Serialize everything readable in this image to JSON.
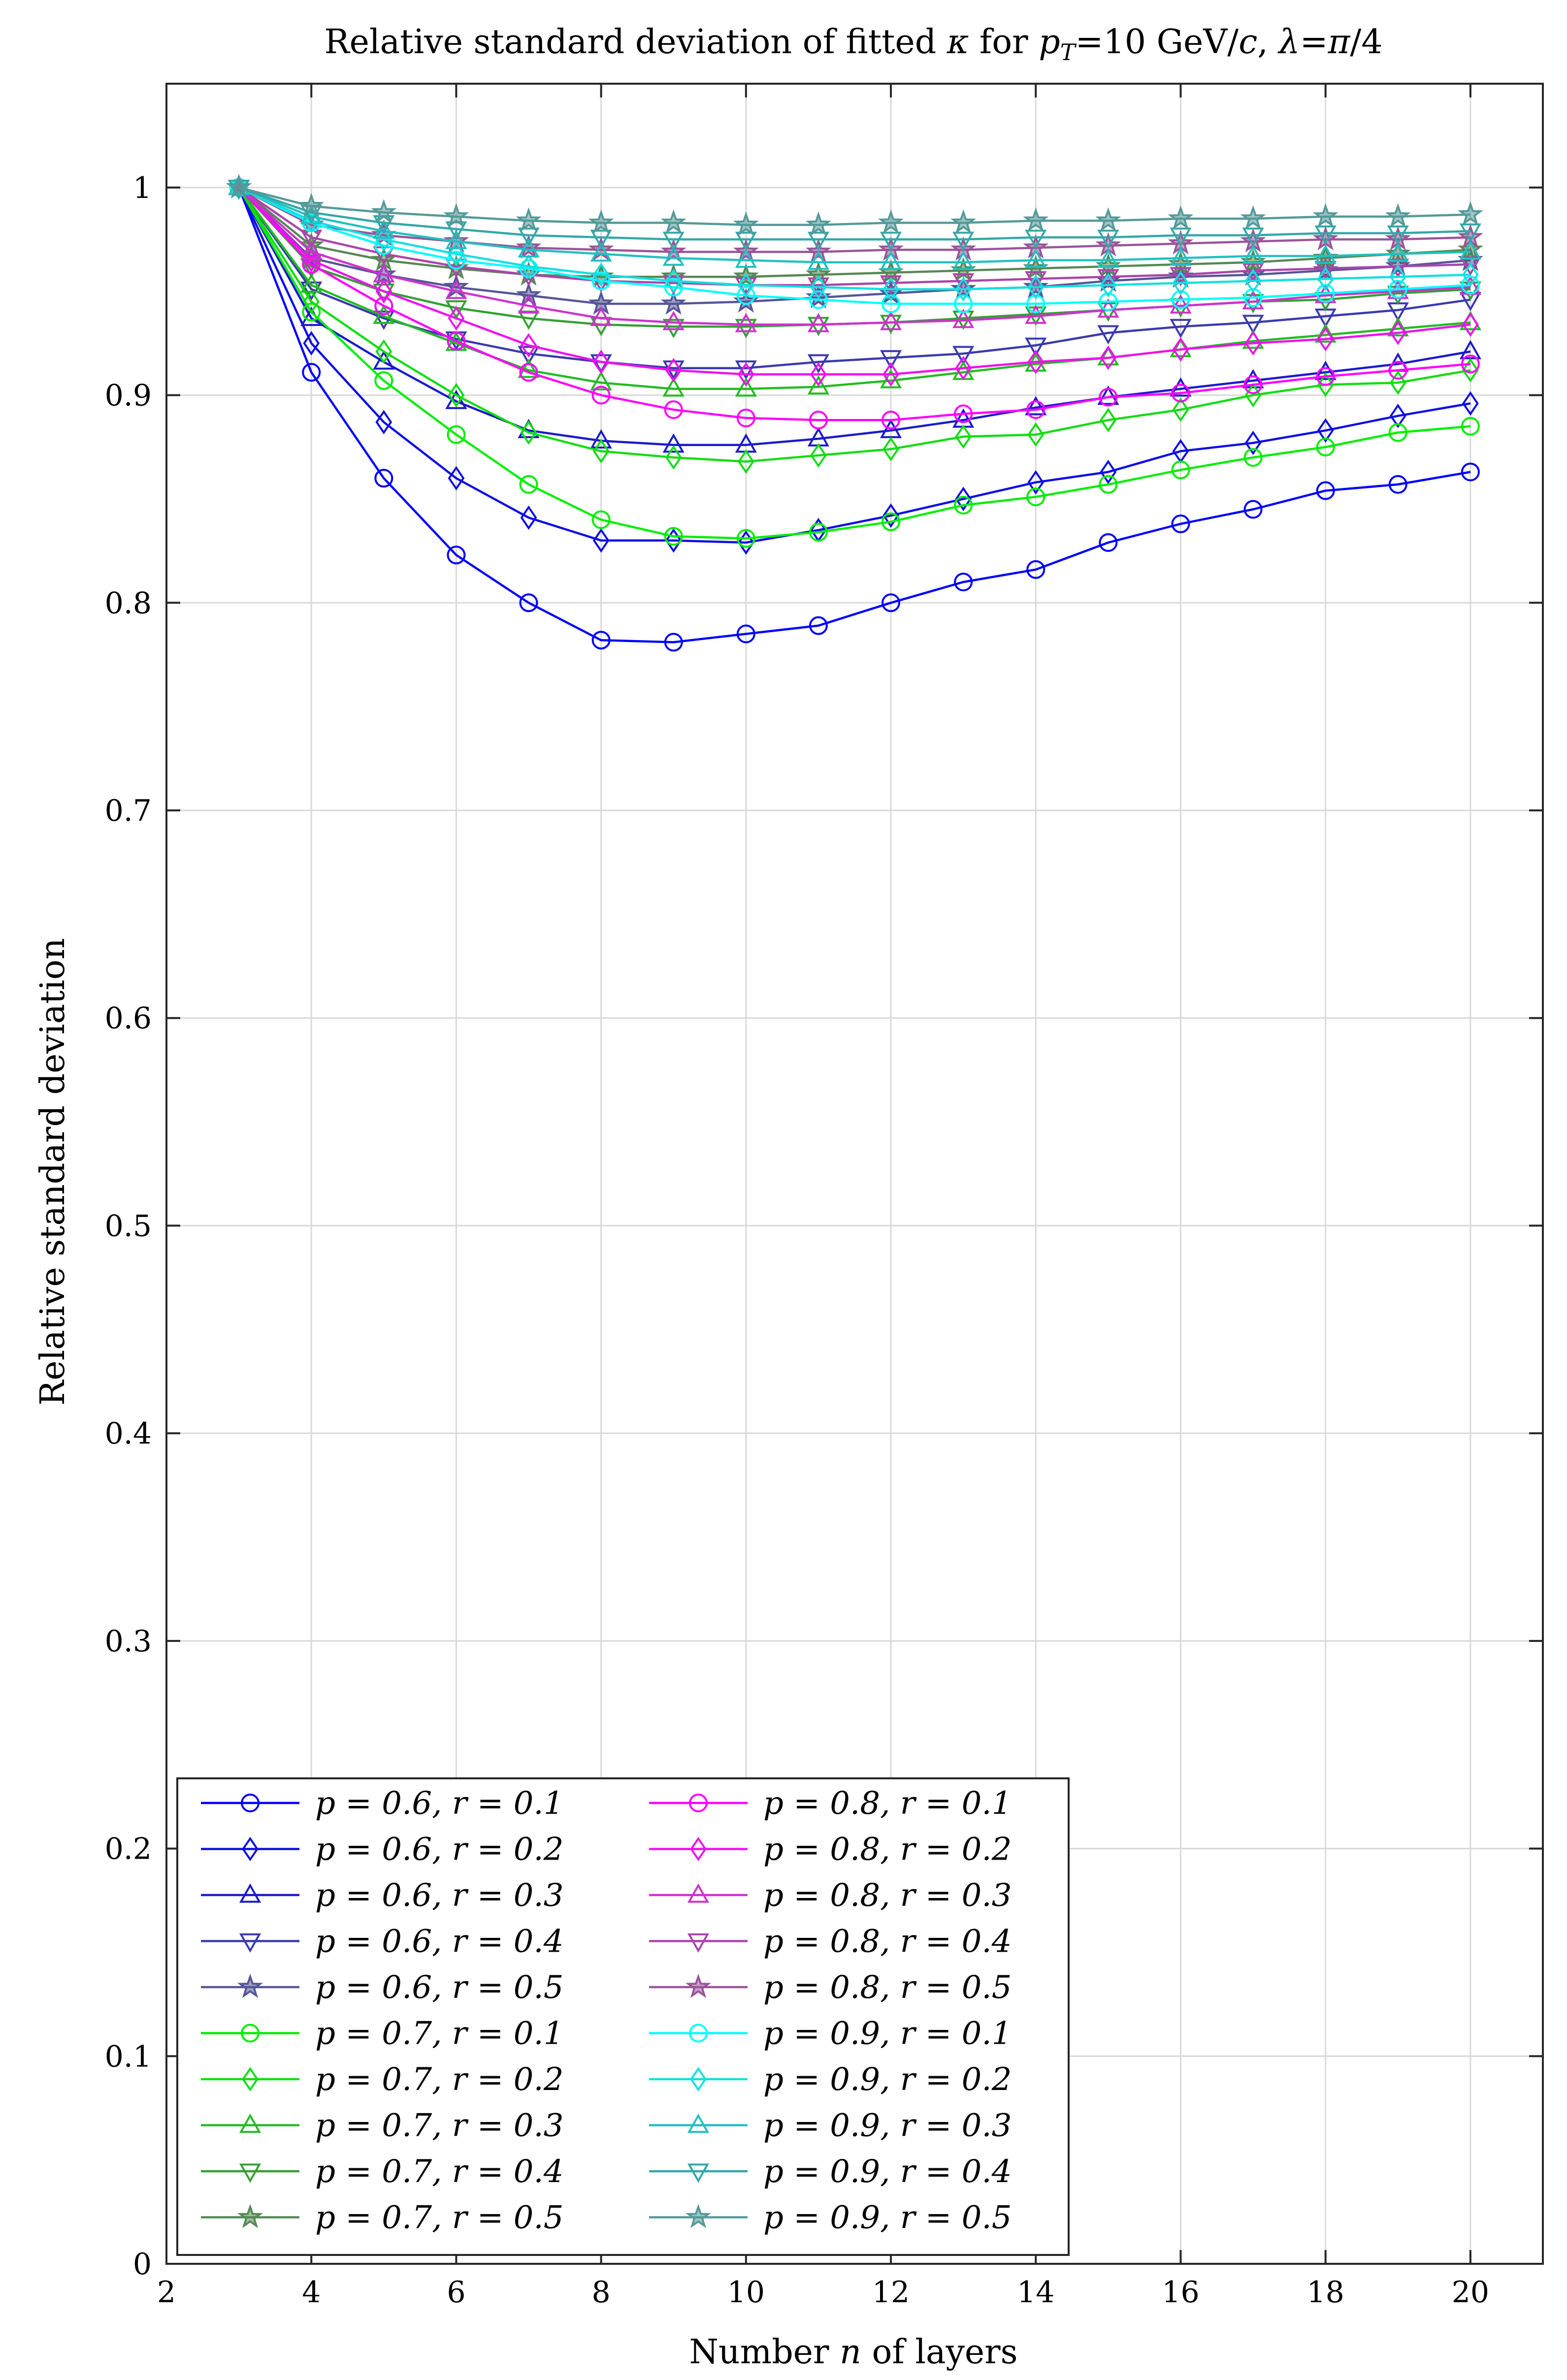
{
  "chart_data": {
    "type": "line",
    "title": "Relative standard deviation of fitted κ for pT=10 GeV/c, λ=π/4",
    "title_parts": {
      "prefix": "Relative standard deviation of fitted ",
      "kappa": "κ",
      "for": " for ",
      "p": "p",
      "sub_T": "T",
      "mid": "=10 GeV/",
      "c": "c",
      "comma": ", ",
      "lambda": "λ",
      "eq": "=",
      "pi": "π",
      "tail": "/4"
    },
    "xlabel": "Number n of layers",
    "xlabel_parts": {
      "before": "Number ",
      "n": "n",
      "after": " of layers"
    },
    "ylabel": "Relative standard deviation",
    "xlim": [
      2,
      21
    ],
    "ylim": [
      0,
      1.05
    ],
    "xticks": [
      2,
      4,
      6,
      8,
      10,
      12,
      14,
      16,
      18,
      20
    ],
    "xtick_labels": [
      "2",
      "4",
      "6",
      "8",
      "10",
      "12",
      "14",
      "16",
      "18",
      "20"
    ],
    "yticks": [
      0,
      0.1,
      0.2,
      0.3,
      0.4,
      0.5,
      0.6,
      0.7,
      0.8,
      0.9,
      1
    ],
    "ytick_labels": [
      "0",
      "0.1",
      "0.2",
      "0.3",
      "0.4",
      "0.5",
      "0.6",
      "0.7",
      "0.8",
      "0.9",
      "1"
    ],
    "grid": true,
    "legend_position": "bottom-left",
    "x": [
      3,
      4,
      5,
      6,
      7,
      8,
      9,
      10,
      11,
      12,
      13,
      14,
      15,
      16,
      17,
      18,
      19,
      20
    ],
    "series": [
      {
        "name": "p = 0.6, r = 0.1",
        "color": "#0000ff",
        "marker": "circle",
        "values": [
          1,
          0.911,
          0.86,
          0.823,
          0.8,
          0.782,
          0.781,
          0.785,
          0.789,
          0.8,
          0.81,
          0.816,
          0.829,
          0.838,
          0.845,
          0.854,
          0.857,
          0.863
        ]
      },
      {
        "name": "p = 0.6, r = 0.2",
        "color": "#0d0de6",
        "marker": "diamond",
        "values": [
          1,
          0.925,
          0.887,
          0.86,
          0.841,
          0.83,
          0.83,
          0.829,
          0.835,
          0.842,
          0.85,
          0.858,
          0.863,
          0.873,
          0.877,
          0.883,
          0.89,
          0.896
        ]
      },
      {
        "name": "p = 0.6, r = 0.3",
        "color": "#1a1acc",
        "marker": "triangle-up",
        "values": [
          1,
          0.937,
          0.916,
          0.897,
          0.883,
          0.878,
          0.876,
          0.876,
          0.879,
          0.883,
          0.888,
          0.894,
          0.899,
          0.903,
          0.907,
          0.911,
          0.915,
          0.921
        ]
      },
      {
        "name": "p = 0.6, r = 0.4",
        "color": "#3a3ab0",
        "marker": "triangle-down",
        "values": [
          1,
          0.951,
          0.937,
          0.927,
          0.92,
          0.916,
          0.913,
          0.913,
          0.916,
          0.918,
          0.92,
          0.924,
          0.93,
          0.933,
          0.935,
          0.938,
          0.941,
          0.946
        ]
      },
      {
        "name": "p = 0.6, r = 0.5",
        "color": "#555599",
        "marker": "star",
        "values": [
          1,
          0.966,
          0.958,
          0.952,
          0.948,
          0.944,
          0.944,
          0.945,
          0.947,
          0.949,
          0.951,
          0.952,
          0.955,
          0.957,
          0.958,
          0.96,
          0.962,
          0.965
        ]
      },
      {
        "name": "p = 0.7, r = 0.1",
        "color": "#00ee00",
        "marker": "circle",
        "values": [
          1,
          0.94,
          0.907,
          0.881,
          0.857,
          0.84,
          0.832,
          0.831,
          0.834,
          0.839,
          0.847,
          0.851,
          0.857,
          0.864,
          0.87,
          0.875,
          0.882,
          0.885
        ]
      },
      {
        "name": "p = 0.7, r = 0.2",
        "color": "#11dd11",
        "marker": "diamond",
        "values": [
          1,
          0.945,
          0.921,
          0.9,
          0.882,
          0.873,
          0.87,
          0.868,
          0.871,
          0.874,
          0.88,
          0.881,
          0.888,
          0.893,
          0.9,
          0.905,
          0.906,
          0.912
        ]
      },
      {
        "name": "p = 0.7, r = 0.3",
        "color": "#22bb22",
        "marker": "triangle-up",
        "values": [
          1,
          0.953,
          0.938,
          0.925,
          0.912,
          0.906,
          0.903,
          0.903,
          0.904,
          0.907,
          0.911,
          0.915,
          0.918,
          0.922,
          0.926,
          0.929,
          0.932,
          0.935
        ]
      },
      {
        "name": "p = 0.7, r = 0.4",
        "color": "#33a033",
        "marker": "triangle-down",
        "values": [
          1,
          0.962,
          0.95,
          0.942,
          0.937,
          0.934,
          0.933,
          0.933,
          0.934,
          0.935,
          0.937,
          0.939,
          0.941,
          0.943,
          0.945,
          0.946,
          0.949,
          0.951
        ]
      },
      {
        "name": "p = 0.7, r = 0.5",
        "color": "#558855",
        "marker": "star",
        "values": [
          1,
          0.972,
          0.965,
          0.961,
          0.958,
          0.957,
          0.957,
          0.957,
          0.958,
          0.959,
          0.96,
          0.961,
          0.962,
          0.963,
          0.964,
          0.966,
          0.968,
          0.97
        ]
      },
      {
        "name": "p = 0.8, r = 0.1",
        "color": "#ff00ff",
        "marker": "circle",
        "values": [
          1,
          0.963,
          0.943,
          0.926,
          0.911,
          0.9,
          0.893,
          0.889,
          0.888,
          0.888,
          0.891,
          0.893,
          0.899,
          0.901,
          0.905,
          0.909,
          0.912,
          0.915
        ]
      },
      {
        "name": "p = 0.8, r = 0.2",
        "color": "#ee11ee",
        "marker": "diamond",
        "values": [
          1,
          0.965,
          0.95,
          0.937,
          0.924,
          0.916,
          0.912,
          0.91,
          0.91,
          0.91,
          0.913,
          0.916,
          0.918,
          0.922,
          0.925,
          0.927,
          0.93,
          0.934
        ]
      },
      {
        "name": "p = 0.8, r = 0.3",
        "color": "#cc33cc",
        "marker": "triangle-up",
        "values": [
          1,
          0.969,
          0.958,
          0.95,
          0.943,
          0.937,
          0.935,
          0.934,
          0.934,
          0.935,
          0.936,
          0.938,
          0.941,
          0.943,
          0.945,
          0.948,
          0.95,
          0.952
        ]
      },
      {
        "name": "p = 0.8, r = 0.4",
        "color": "#aa44aa",
        "marker": "triangle-down",
        "values": [
          1,
          0.976,
          0.968,
          0.962,
          0.958,
          0.955,
          0.954,
          0.953,
          0.953,
          0.954,
          0.955,
          0.956,
          0.957,
          0.958,
          0.96,
          0.961,
          0.962,
          0.963
        ]
      },
      {
        "name": "p = 0.8, r = 0.5",
        "color": "#995599",
        "marker": "star",
        "values": [
          1,
          0.982,
          0.977,
          0.974,
          0.971,
          0.97,
          0.969,
          0.969,
          0.969,
          0.97,
          0.97,
          0.971,
          0.972,
          0.973,
          0.974,
          0.975,
          0.975,
          0.976
        ]
      },
      {
        "name": "p = 0.9, r = 0.1",
        "color": "#00ffff",
        "marker": "circle",
        "values": [
          1,
          0.983,
          0.972,
          0.965,
          0.961,
          0.955,
          0.952,
          0.948,
          0.946,
          0.944,
          0.944,
          0.944,
          0.945,
          0.946,
          0.947,
          0.949,
          0.951,
          0.953
        ]
      },
      {
        "name": "p = 0.9, r = 0.2",
        "color": "#11e0e0",
        "marker": "diamond",
        "values": [
          1,
          0.984,
          0.975,
          0.968,
          0.962,
          0.958,
          0.955,
          0.953,
          0.952,
          0.951,
          0.951,
          0.952,
          0.953,
          0.954,
          0.955,
          0.956,
          0.957,
          0.958
        ]
      },
      {
        "name": "p = 0.9, r = 0.3",
        "color": "#22c0c0",
        "marker": "triangle-up",
        "values": [
          1,
          0.986,
          0.979,
          0.974,
          0.97,
          0.968,
          0.966,
          0.965,
          0.964,
          0.964,
          0.964,
          0.965,
          0.965,
          0.966,
          0.967,
          0.967,
          0.968,
          0.969
        ]
      },
      {
        "name": "p = 0.9, r = 0.4",
        "color": "#33a8a8",
        "marker": "triangle-down",
        "values": [
          1,
          0.988,
          0.983,
          0.98,
          0.977,
          0.976,
          0.975,
          0.975,
          0.975,
          0.975,
          0.975,
          0.976,
          0.976,
          0.977,
          0.977,
          0.978,
          0.978,
          0.979
        ]
      },
      {
        "name": "p = 0.9, r = 0.5",
        "color": "#559999",
        "marker": "star",
        "values": [
          1,
          0.991,
          0.988,
          0.986,
          0.984,
          0.983,
          0.983,
          0.982,
          0.982,
          0.983,
          0.983,
          0.984,
          0.984,
          0.985,
          0.985,
          0.986,
          0.986,
          0.987
        ]
      }
    ]
  }
}
